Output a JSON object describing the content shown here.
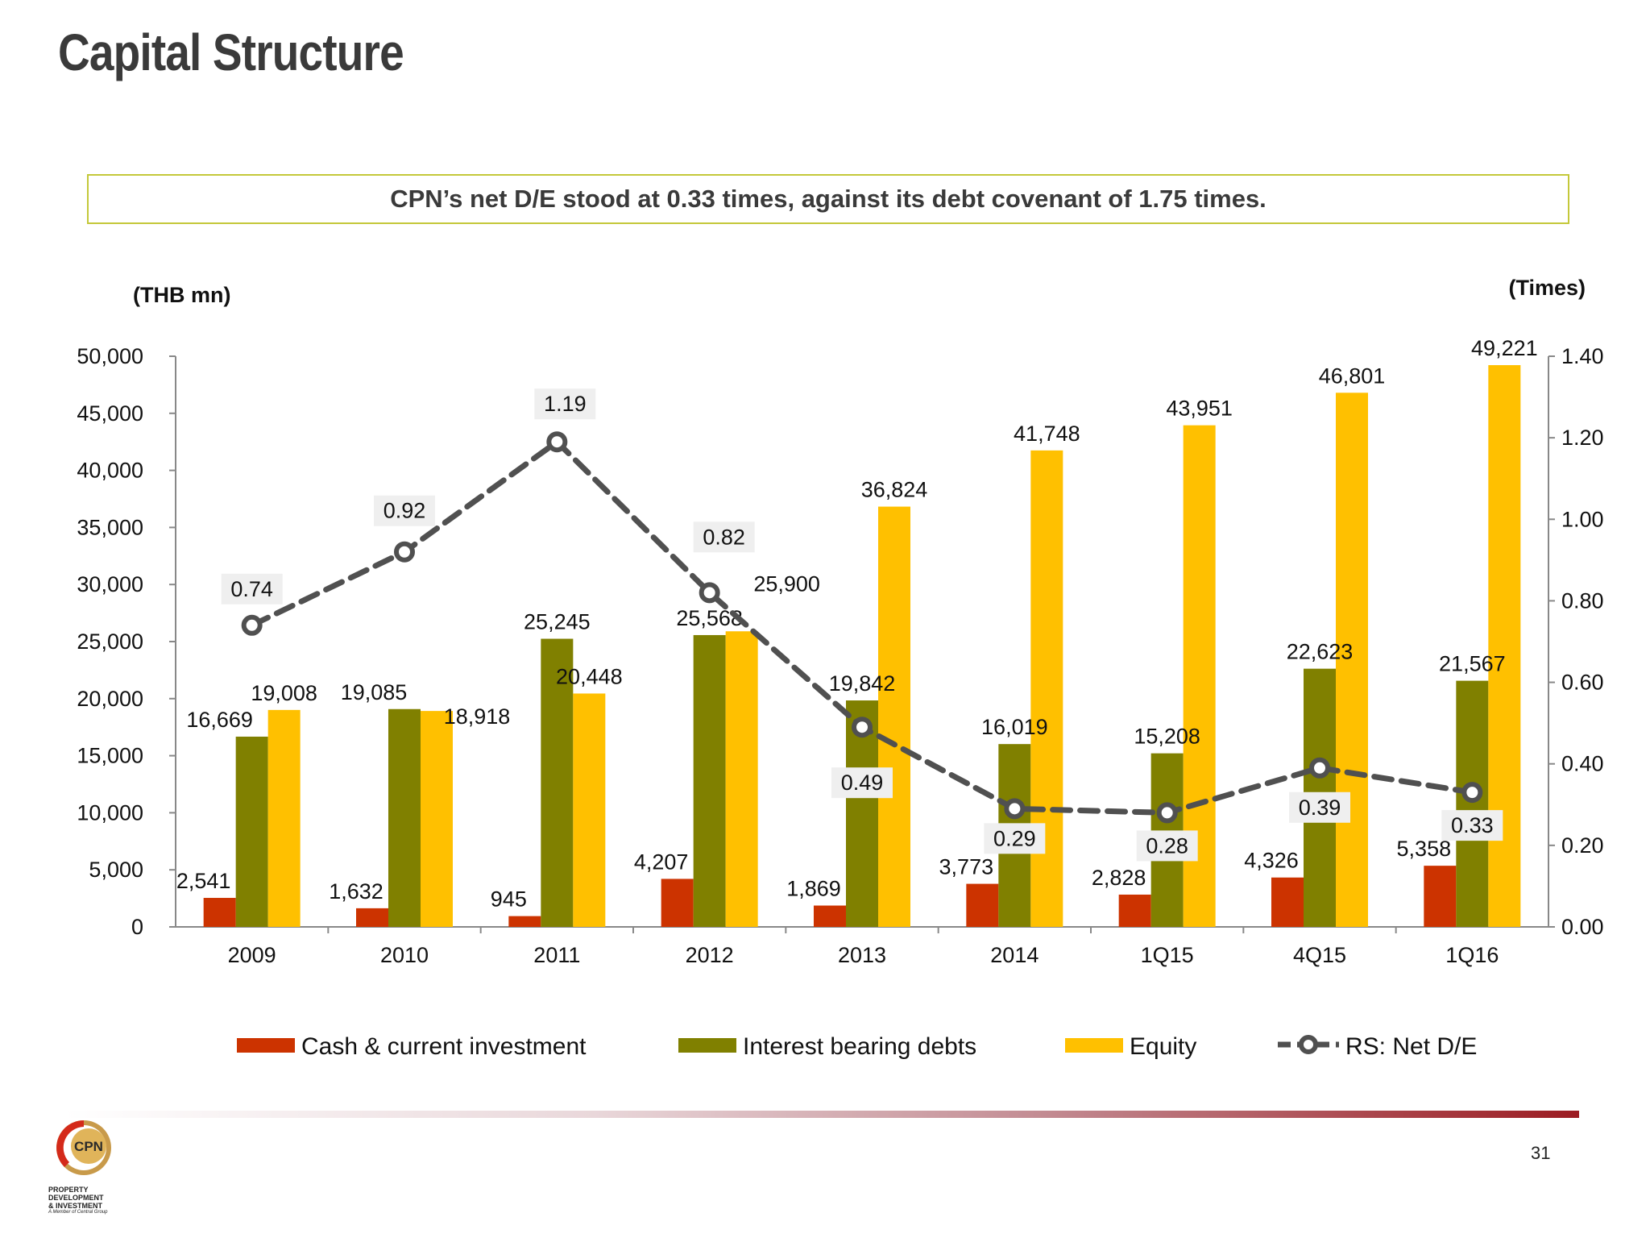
{
  "header": {
    "title": "Capital Structure"
  },
  "callout": {
    "text": "CPN’s net D/E stood at 0.33 times, against its debt covenant of 1.75 times."
  },
  "footer": {
    "page_number": "31",
    "logo_text": "CPN",
    "logo_lines": [
      "PROPERTY",
      "DEVELOPMENT",
      "& INVESTMENT"
    ],
    "logo_tagline": "A Member of Central Group"
  },
  "colors": {
    "cash": "#cc3300",
    "debt": "#808000",
    "equity": "#ffc000",
    "ratio": "#505050"
  },
  "chart_data": {
    "type": "bar",
    "categories": [
      "2009",
      "2010",
      "2011",
      "2012",
      "2013",
      "2014",
      "1Q15",
      "4Q15",
      "1Q16"
    ],
    "ylabel": "(THB mn)",
    "y2label": "(Times)",
    "ylim": [
      0,
      50000
    ],
    "y2lim": [
      0,
      1.4
    ],
    "yticks": [
      "0",
      "5,000",
      "10,000",
      "15,000",
      "20,000",
      "25,000",
      "30,000",
      "35,000",
      "40,000",
      "45,000",
      "50,000"
    ],
    "y2ticks": [
      "0.00",
      "0.20",
      "0.40",
      "0.60",
      "0.80",
      "1.00",
      "1.20",
      "1.40"
    ],
    "legend_position": "bottom",
    "series": [
      {
        "name": "Cash & current investment",
        "type": "bar",
        "values": [
          2541,
          1632,
          945,
          4207,
          1869,
          3773,
          2828,
          4326,
          5358
        ],
        "labels": [
          "2,541",
          "1,632",
          "945",
          "4,207",
          "1,869",
          "3,773",
          "2,828",
          "4,326",
          "5,358"
        ]
      },
      {
        "name": "Interest bearing debts",
        "type": "bar",
        "values": [
          16669,
          19085,
          25245,
          25568,
          19842,
          16019,
          15208,
          22623,
          21567
        ],
        "labels": [
          "16,669",
          "19,085",
          "25,245",
          "25,568",
          "19,842",
          "16,019",
          "15,208",
          "22,623",
          "21,567"
        ]
      },
      {
        "name": "Equity",
        "type": "bar",
        "values": [
          19008,
          18918,
          20448,
          25900,
          36824,
          41748,
          43951,
          46801,
          49221
        ],
        "labels": [
          "19,008",
          "18,918",
          "20,448",
          "25,900",
          "36,824",
          "41,748",
          "43,951",
          "46,801",
          "49,221"
        ]
      },
      {
        "name": "RS: Net D/E",
        "type": "line",
        "axis": "right",
        "values": [
          0.74,
          0.92,
          1.19,
          0.82,
          0.49,
          0.29,
          0.28,
          0.39,
          0.33
        ],
        "labels": [
          "0.74",
          "0.92",
          "1.19",
          "0.82",
          "0.49",
          "0.29",
          "0.28",
          "0.39",
          "0.33"
        ]
      }
    ]
  }
}
